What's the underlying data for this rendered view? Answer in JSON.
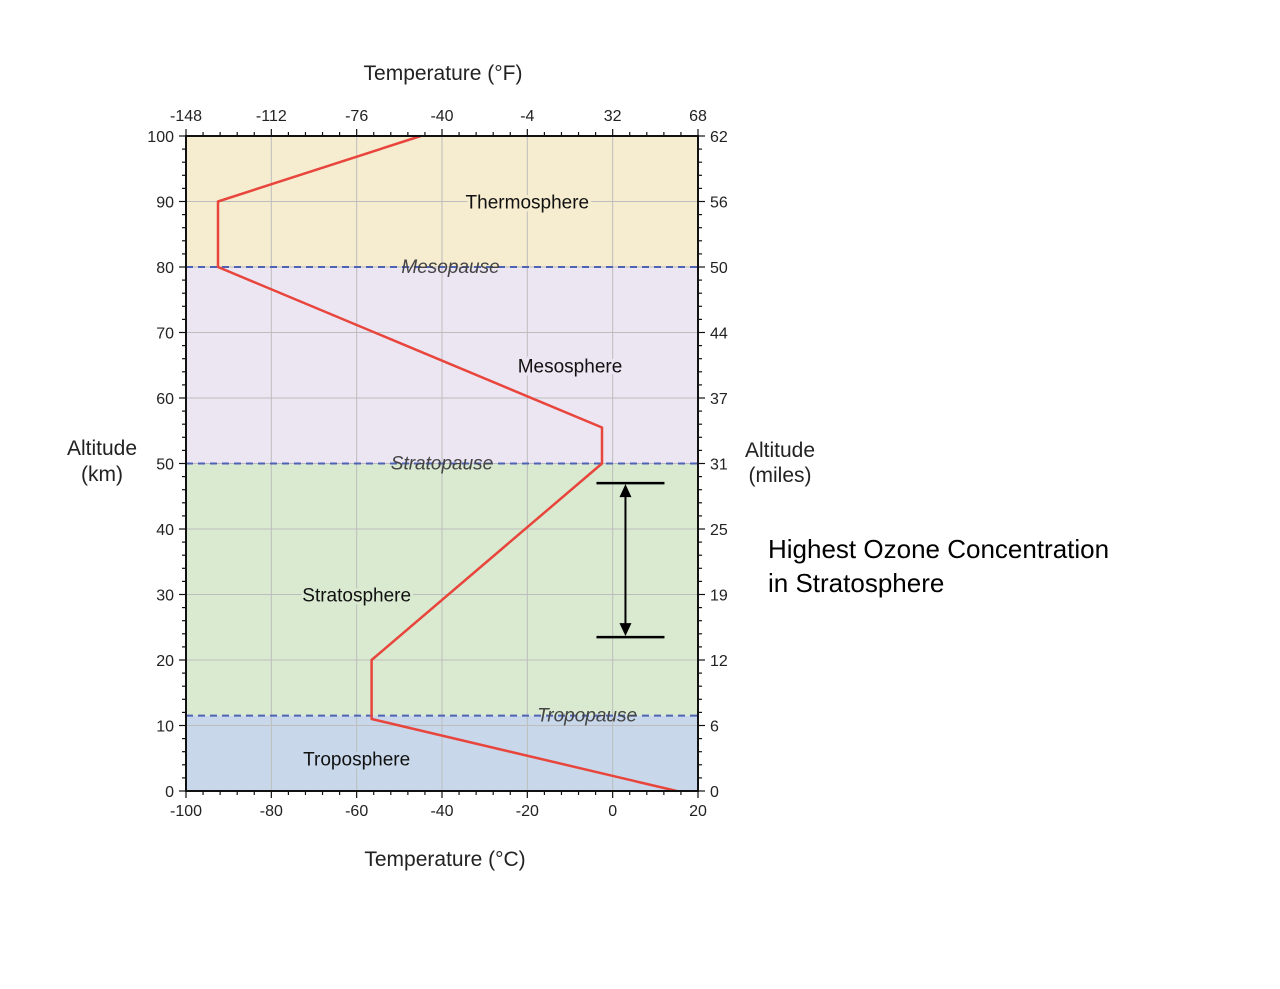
{
  "chart_data": {
    "type": "line",
    "x_top_label": "Temperature (°F)",
    "x_bottom_label": "Temperature (°C)",
    "y_left_label_line1": "Altitude",
    "y_left_label_line2": "(km)",
    "y_right_label_line1": "Altitude",
    "y_right_label_line2": "(miles)",
    "xlim": [
      -100,
      20
    ],
    "ylim": [
      0,
      100
    ],
    "x_ticks_bottom": [
      {
        "value": -100,
        "label": "-100"
      },
      {
        "value": -80,
        "label": "-80"
      },
      {
        "value": -60,
        "label": "-60"
      },
      {
        "value": -40,
        "label": "-40"
      },
      {
        "value": -20,
        "label": "-20"
      },
      {
        "value": 0,
        "label": "0"
      },
      {
        "value": 20,
        "label": "20"
      }
    ],
    "x_ticks_top": [
      {
        "value": -100,
        "label": "-148"
      },
      {
        "value": -80,
        "label": "-112"
      },
      {
        "value": -60,
        "label": "-76"
      },
      {
        "value": -40,
        "label": "-40"
      },
      {
        "value": -20,
        "label": "-4"
      },
      {
        "value": 0,
        "label": "32"
      },
      {
        "value": 20,
        "label": "68"
      }
    ],
    "y_ticks_left": [
      {
        "value": 0,
        "label": "0"
      },
      {
        "value": 10,
        "label": "10"
      },
      {
        "value": 20,
        "label": "20"
      },
      {
        "value": 30,
        "label": "30"
      },
      {
        "value": 40,
        "label": "40"
      },
      {
        "value": 50,
        "label": "50"
      },
      {
        "value": 60,
        "label": "60"
      },
      {
        "value": 70,
        "label": "70"
      },
      {
        "value": 80,
        "label": "80"
      },
      {
        "value": 90,
        "label": "90"
      },
      {
        "value": 100,
        "label": "100"
      }
    ],
    "y_ticks_right": [
      {
        "value": 0,
        "label": "0"
      },
      {
        "value": 10,
        "label": "6"
      },
      {
        "value": 20,
        "label": "12"
      },
      {
        "value": 30,
        "label": "19"
      },
      {
        "value": 40,
        "label": "25"
      },
      {
        "value": 50,
        "label": "31"
      },
      {
        "value": 60,
        "label": "37"
      },
      {
        "value": 70,
        "label": "44"
      },
      {
        "value": 80,
        "label": "50"
      },
      {
        "value": 90,
        "label": "56"
      },
      {
        "value": 100,
        "label": "62"
      }
    ],
    "layers": [
      {
        "label": "Troposphere",
        "from": 0,
        "to": 11.5,
        "color": "#c8d8ea",
        "label_x": -60,
        "label_y": 5
      },
      {
        "label": "Stratosphere",
        "from": 11.5,
        "to": 50,
        "color": "#d9ead1",
        "label_x": -60,
        "label_y": 30
      },
      {
        "label": "Mesosphere",
        "from": 50,
        "to": 80,
        "color": "#ece5f2",
        "label_x": -10,
        "label_y": 65
      },
      {
        "label": "Thermosphere",
        "from": 80,
        "to": 100,
        "color": "#f6ecd0",
        "label_x": -20,
        "label_y": 90
      }
    ],
    "boundaries": [
      {
        "label": "Tropopause",
        "y": 11.5,
        "label_x": -6
      },
      {
        "label": "Stratopause",
        "y": 50,
        "label_x": -40
      },
      {
        "label": "Mesopause",
        "y": 80,
        "label_x": -38
      }
    ],
    "series": [
      {
        "color": "#e8453c",
        "x": [
          15,
          -56.5,
          -56.5,
          -2.5,
          -2.5,
          -92.5,
          -92.5,
          -45
        ],
        "y": [
          0,
          11,
          20,
          50,
          55.5,
          80,
          90,
          100
        ]
      }
    ],
    "ozone_range": {
      "x": 3,
      "from": 23.5,
      "to": 47
    }
  },
  "annotation": {
    "line1": "Highest Ozone Concentration",
    "line2": "in Stratosphere"
  }
}
